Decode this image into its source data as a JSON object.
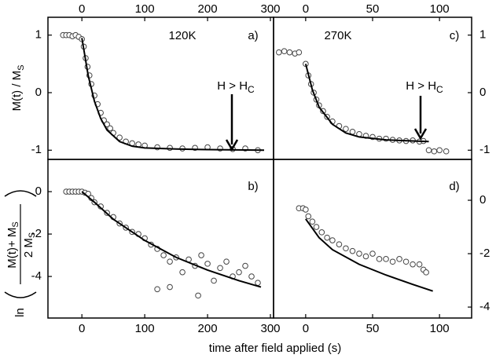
{
  "figure": {
    "xlabel": "time after field applied (s)"
  },
  "chart_data": [
    {
      "type": "scatter",
      "panel_tag": "a)",
      "label": "120K",
      "arrow_text": [
        "H > H",
        "C"
      ],
      "ylabel": [
        "M(t) / M",
        "S"
      ],
      "xlim": [
        -54,
        305
      ],
      "ylim": [
        -1.16,
        1.31
      ],
      "xticks": [
        0,
        100,
        200,
        300
      ],
      "yticks": [
        -1,
        0,
        1
      ],
      "xaxis_side": "top",
      "yaxis_side": "left",
      "series": [
        {
          "mode": "markers",
          "color": "#444444",
          "x": [
            -30,
            -25,
            -20,
            -15,
            -10,
            -5,
            0,
            3,
            6,
            9,
            12,
            15,
            20,
            25,
            30,
            35,
            40,
            45,
            50,
            60,
            70,
            80,
            90,
            100,
            120,
            140,
            160,
            180,
            200,
            220,
            240,
            260,
            280
          ],
          "values": [
            1.0,
            1.0,
            1.0,
            0.98,
            1.0,
            0.97,
            0.93,
            0.8,
            0.6,
            0.45,
            0.3,
            0.15,
            -0.05,
            -0.2,
            -0.35,
            -0.48,
            -0.55,
            -0.62,
            -0.7,
            -0.78,
            -0.85,
            -0.88,
            -0.9,
            -0.92,
            -0.95,
            -0.96,
            -0.97,
            -0.96,
            -0.95,
            -0.97,
            -0.98,
            -0.97,
            -1.0
          ]
        },
        {
          "mode": "line",
          "color": "#000000",
          "x": [
            0,
            10,
            20,
            30,
            40,
            60,
            80,
            100,
            150,
            200,
            290
          ],
          "values": [
            0.95,
            0.3,
            -0.15,
            -0.45,
            -0.65,
            -0.85,
            -0.93,
            -0.96,
            -0.98,
            -0.99,
            -1.0
          ]
        }
      ]
    },
    {
      "type": "scatter",
      "panel_tag": "c)",
      "label": "270K",
      "arrow_text": [
        "H > H",
        "C"
      ],
      "xlim": [
        -24,
        124
      ],
      "ylim": [
        -1.16,
        1.31
      ],
      "xticks": [
        0,
        50,
        100
      ],
      "yticks": [
        -1,
        0,
        1
      ],
      "xaxis_side": "top",
      "yaxis_side": "right",
      "series": [
        {
          "mode": "markers",
          "color": "#444444",
          "x": [
            -20,
            -16,
            -12,
            -8,
            -5,
            0,
            2,
            4,
            6,
            8,
            10,
            13,
            16,
            20,
            25,
            30,
            35,
            40,
            45,
            50,
            55,
            60,
            65,
            70,
            75,
            80,
            85,
            88,
            92,
            96,
            100,
            105
          ],
          "values": [
            0.7,
            0.72,
            0.7,
            0.68,
            0.7,
            0.5,
            0.3,
            0.15,
            0.0,
            -0.12,
            -0.22,
            -0.32,
            -0.42,
            -0.5,
            -0.58,
            -0.63,
            -0.68,
            -0.72,
            -0.75,
            -0.77,
            -0.8,
            -0.8,
            -0.82,
            -0.83,
            -0.84,
            -0.83,
            -0.85,
            -0.84,
            -1.0,
            -1.02,
            -1.0,
            -1.02
          ]
        },
        {
          "mode": "line",
          "color": "#000000",
          "x": [
            0,
            5,
            10,
            20,
            30,
            40,
            60,
            80,
            92
          ],
          "values": [
            0.5,
            0.05,
            -0.25,
            -0.55,
            -0.7,
            -0.77,
            -0.82,
            -0.84,
            -0.85
          ]
        }
      ]
    },
    {
      "type": "scatter",
      "panel_tag": "b)",
      "ylabel": [
        "ln",
        "M(t)+ M",
        "S",
        "2 M",
        "S"
      ],
      "xlim": [
        -54,
        305
      ],
      "ylim": [
        -5.96,
        1.52
      ],
      "xticks": [
        0,
        100,
        200,
        300
      ],
      "yticks": [
        -4,
        -2,
        0
      ],
      "xaxis_side": "bottom",
      "yaxis_side": "left",
      "series": [
        {
          "mode": "markers",
          "color": "#444444",
          "x": [
            -25,
            -20,
            -15,
            -10,
            -5,
            0,
            5,
            10,
            15,
            20,
            30,
            40,
            50,
            60,
            70,
            80,
            90,
            100,
            110,
            120,
            130,
            140,
            150,
            160,
            170,
            180,
            185,
            190,
            200,
            210,
            220,
            230,
            240,
            250,
            260,
            270,
            280,
            120,
            140
          ],
          "values": [
            0,
            0,
            0,
            0,
            0,
            0,
            -0.05,
            -0.1,
            -0.3,
            -0.5,
            -0.7,
            -1.0,
            -1.2,
            -1.5,
            -1.7,
            -1.9,
            -2.0,
            -2.2,
            -2.5,
            -2.7,
            -3.0,
            -3.3,
            -3.1,
            -3.8,
            -3.2,
            -3.5,
            -4.9,
            -3.0,
            -3.4,
            -4.2,
            -3.6,
            -3.3,
            -4.0,
            -3.8,
            -3.5,
            -4.0,
            -4.3,
            -4.6,
            -4.5
          ]
        },
        {
          "mode": "line",
          "color": "#000000",
          "x": [
            0,
            20,
            50,
            100,
            150,
            200,
            250,
            285
          ],
          "values": [
            0,
            -0.5,
            -1.3,
            -2.3,
            -3.1,
            -3.7,
            -4.2,
            -4.5
          ]
        }
      ]
    },
    {
      "type": "scatter",
      "panel_tag": "d)",
      "xlim": [
        -24,
        124
      ],
      "ylim": [
        -4.41,
        1.53
      ],
      "xticks": [
        0,
        50,
        100
      ],
      "yticks": [
        -4,
        -2,
        0
      ],
      "xaxis_side": "bottom",
      "yaxis_side": "right",
      "series": [
        {
          "mode": "markers",
          "color": "#444444",
          "x": [
            -5,
            -2,
            0,
            2,
            5,
            8,
            12,
            16,
            20,
            25,
            30,
            35,
            40,
            45,
            50,
            55,
            60,
            65,
            70,
            75,
            80,
            85,
            88,
            90
          ],
          "values": [
            -0.3,
            -0.3,
            -0.35,
            -0.6,
            -0.8,
            -1.0,
            -1.2,
            -1.4,
            -1.5,
            -1.65,
            -1.8,
            -1.9,
            -2.0,
            -2.1,
            -2.0,
            -2.2,
            -2.2,
            -2.3,
            -2.2,
            -2.3,
            -2.4,
            -2.4,
            -2.6,
            -2.7
          ]
        },
        {
          "mode": "line",
          "color": "#000000",
          "x": [
            0,
            10,
            20,
            40,
            60,
            80,
            95
          ],
          "values": [
            -0.7,
            -1.4,
            -1.85,
            -2.4,
            -2.8,
            -3.15,
            -3.4
          ]
        }
      ]
    }
  ]
}
